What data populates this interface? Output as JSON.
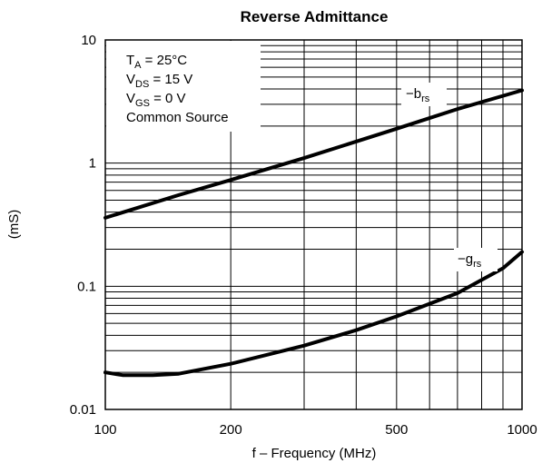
{
  "chart_data": {
    "type": "line",
    "title": "Reverse Admittance",
    "xlabel": "f – Frequency (MHz)",
    "ylabel": "(mS)",
    "x_scale": "log",
    "y_scale": "log",
    "xlim": [
      100,
      1000
    ],
    "ylim": [
      0.01,
      10
    ],
    "grid": true,
    "x_ticks": [
      {
        "value": 100,
        "label": "100"
      },
      {
        "value": 200,
        "label": "200"
      },
      {
        "value": 500,
        "label": "500"
      },
      {
        "value": 1000,
        "label": "1000"
      }
    ],
    "y_ticks": [
      {
        "value": 10,
        "label": "10"
      },
      {
        "value": 1,
        "label": "1"
      },
      {
        "value": 0.1,
        "label": "0.1"
      },
      {
        "value": 0.01,
        "label": "0.01"
      }
    ],
    "conditions": {
      "ta": {
        "main": "T",
        "sub": "A",
        "rest": " = 25°C"
      },
      "vds": {
        "main": "V",
        "sub": "DS",
        "rest": " = 15 V"
      },
      "vgs": {
        "main": "V",
        "sub": "GS",
        "rest": " = 0 V"
      },
      "source": "Common Source"
    },
    "series": [
      {
        "name": "−b",
        "name_sub": "rs",
        "x": [
          100,
          150,
          200,
          300,
          500,
          700,
          1000
        ],
        "y": [
          0.36,
          0.55,
          0.73,
          1.1,
          1.9,
          2.75,
          3.9
        ]
      },
      {
        "name": "−g",
        "name_sub": "rs",
        "x": [
          100,
          110,
          130,
          150,
          200,
          300,
          400,
          500,
          700,
          900,
          1000
        ],
        "y": [
          0.02,
          0.019,
          0.019,
          0.0195,
          0.0235,
          0.033,
          0.044,
          0.057,
          0.088,
          0.14,
          0.19
        ]
      }
    ]
  }
}
